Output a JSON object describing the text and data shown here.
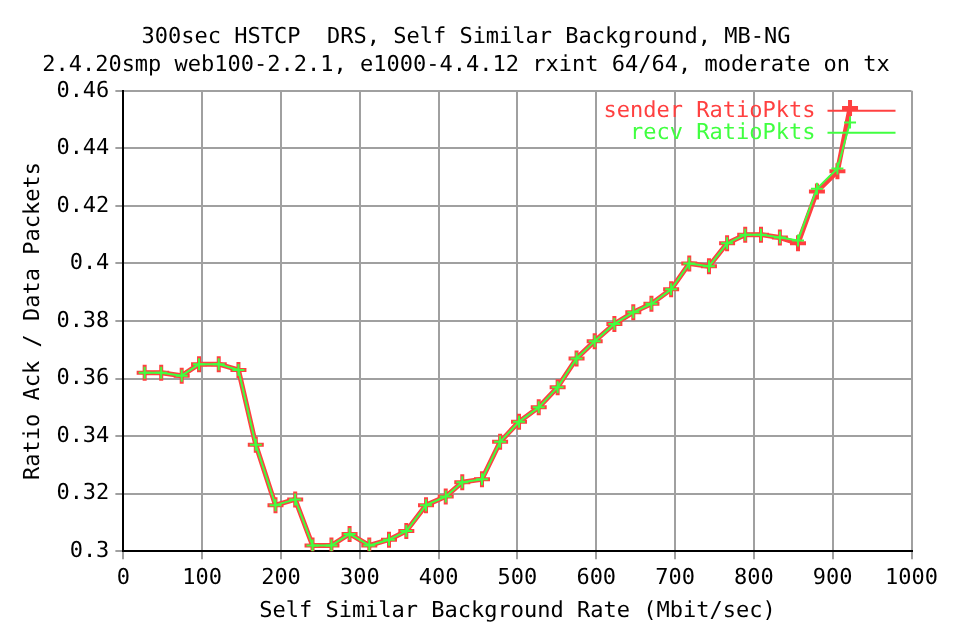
{
  "chart_data": {
    "type": "line",
    "title": "300sec HSTCP  DRS, Self Similar Background, MB-NG",
    "subtitle": "2.4.20smp web100-2.2.1, e1000-4.4.12 rxint 64/64, moderate on tx",
    "xlabel": "Self Similar Background Rate (Mbit/sec)",
    "ylabel": "Ratio Ack / Data Packets",
    "x": [
      27,
      48,
      74,
      96,
      121,
      146,
      168,
      193,
      218,
      240,
      264,
      287,
      312,
      337,
      359,
      384,
      409,
      430,
      455,
      478,
      502,
      527,
      551,
      575,
      598,
      623,
      647,
      670,
      695,
      718,
      743,
      766,
      789,
      809,
      833,
      856,
      880,
      906,
      922
    ],
    "series": [
      {
        "name": "sender RatioPkts",
        "color": "#ff4040",
        "values": [
          0.362,
          0.362,
          0.361,
          0.365,
          0.365,
          0.363,
          0.337,
          0.316,
          0.318,
          0.302,
          0.302,
          0.306,
          0.302,
          0.304,
          0.307,
          0.316,
          0.319,
          0.324,
          0.325,
          0.338,
          0.345,
          0.35,
          0.357,
          0.367,
          0.373,
          0.379,
          0.383,
          0.386,
          0.391,
          0.4,
          0.399,
          0.407,
          0.41,
          0.41,
          0.409,
          0.407,
          0.425,
          0.432,
          0.454
        ]
      },
      {
        "name": "recv RatioPkts",
        "color": "#40ff40",
        "values": [
          0.362,
          0.362,
          0.361,
          0.365,
          0.365,
          0.363,
          0.337,
          0.316,
          0.318,
          0.302,
          0.302,
          0.306,
          0.302,
          0.304,
          0.307,
          0.316,
          0.319,
          0.324,
          0.325,
          0.338,
          0.345,
          0.35,
          0.357,
          0.367,
          0.373,
          0.379,
          0.383,
          0.386,
          0.391,
          0.4,
          0.399,
          0.407,
          0.41,
          0.41,
          0.409,
          0.408,
          0.426,
          0.433,
          0.449
        ]
      }
    ],
    "xlim": [
      0,
      1000
    ],
    "xticks": [
      0,
      100,
      200,
      300,
      400,
      500,
      600,
      700,
      800,
      900,
      1000
    ],
    "ylim": [
      0.3,
      0.46
    ],
    "yticks": [
      0.3,
      0.32,
      0.34,
      0.36,
      0.38,
      0.4,
      0.42,
      0.44,
      0.46
    ],
    "grid": true,
    "legend": "top right",
    "marker": "cross",
    "line_style": "solid"
  }
}
